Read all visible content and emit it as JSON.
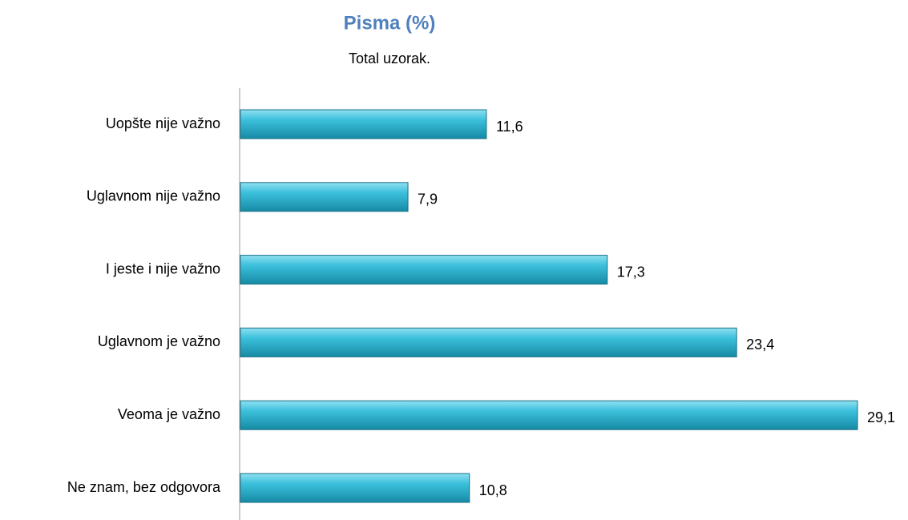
{
  "chart_data": {
    "type": "bar",
    "orientation": "horizontal",
    "title": "Pisma (%)",
    "subtitle": "Total uzorak.",
    "categories": [
      "Uopšte nije važno",
      "Uglavnom nije važno",
      "I jeste i nije važno",
      "Uglavnom je važno",
      "Veoma je važno",
      "Ne znam, bez odgovora"
    ],
    "values": [
      11.6,
      7.9,
      17.3,
      23.4,
      29.1,
      10.8
    ],
    "value_labels": [
      "11,6",
      "7,9",
      "17,3",
      "23,4",
      "29,1",
      "10,8"
    ],
    "color": "#3cb8d6"
  }
}
